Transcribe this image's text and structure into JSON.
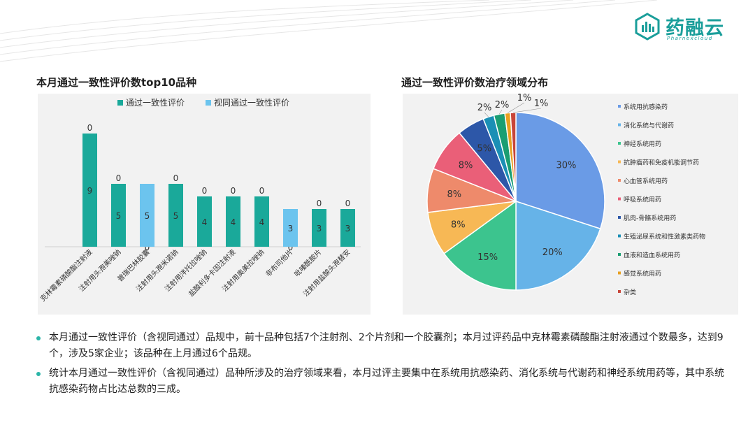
{
  "brand": {
    "name": "药融云",
    "sub": "Pharnexcloud",
    "color": "#1a9e9a"
  },
  "bar_title": "本月通过一致性评价数top10品种",
  "pie_title": "通过一致性评价数治疗领域分布",
  "chart_data": [
    {
      "type": "bar",
      "categories": [
        "克林霉素磷酸酯注射液",
        "注射用头孢美唑钠",
        "普瑞巴林胶囊",
        "注射用头孢米诺钠",
        "注射用泮托拉唑钠",
        "盐酸利多卡因注射液",
        "注射用奥美拉唑钠",
        "非布司他片",
        "吡嗪酰胺片",
        "注射用盐酸头孢替安"
      ],
      "series": [
        {
          "name": "通过一致性评价",
          "color": "#1aa99a",
          "values": [
            9,
            5,
            0,
            5,
            4,
            4,
            4,
            0,
            3,
            3
          ]
        },
        {
          "name": "视同通过一致性评价",
          "color": "#6cc4ee",
          "values": [
            0,
            0,
            5,
            0,
            0,
            0,
            0,
            3,
            0,
            0
          ]
        }
      ],
      "stacked": true,
      "legend": "top",
      "grid": false,
      "ylim": [
        0,
        10
      ]
    },
    {
      "type": "pie",
      "labels": [
        "系统用抗感染药",
        "消化系统与代谢药",
        "神经系统用药",
        "抗肿瘤药和免疫机能调节药",
        "心血管系统用药",
        "呼吸系统用药",
        "肌肉-骨骼系统用药",
        "生殖泌尿系统和性激素类药物",
        "血液和造血系统用药",
        "感觉系统用药",
        "杂类"
      ],
      "values": [
        30,
        20,
        15,
        8,
        8,
        8,
        5,
        2,
        2,
        1,
        1
      ],
      "colors": [
        "#6a9be6",
        "#66b3e8",
        "#3cc48e",
        "#f7b855",
        "#ee8a6b",
        "#ea5f78",
        "#2d57a8",
        "#1a8fb5",
        "#1a9e72",
        "#e8a020",
        "#c8463a"
      ],
      "legend": "right"
    }
  ],
  "bullets": [
    "本月通过一致性评价（含视同通过）品规中，前十品种包括7个注射剂、2个片剂和一个胶囊剂；本月过评药品中克林霉素磷酸酯注射液通过个数最多，达到9个，涉及5家企业；该品种在上月通过6个品规。",
    "统计本月通过一致性评价（含视同通过）品种所涉及的治疗领域来看，本月过评主要集中在系统用抗感染药、消化系统与代谢药和神经系统用药等，其中系统抗感染药物占比达总数的三成。"
  ]
}
